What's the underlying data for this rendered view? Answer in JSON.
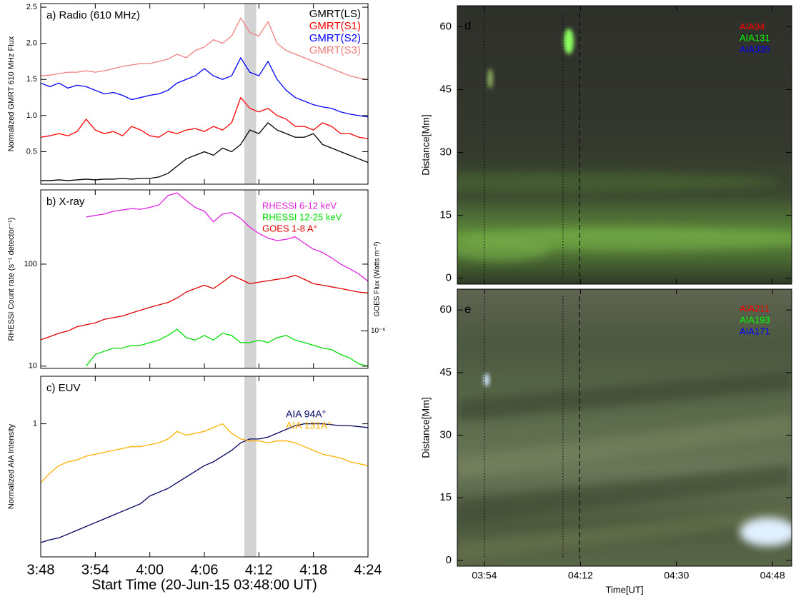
{
  "chart_data": [
    {
      "type": "line",
      "title": "a) Radio (610 MHz)",
      "ylabel": "Normalized GMRT 610 MHz Flux",
      "x": [
        "3:48",
        "3:49",
        "3:50",
        "3:51",
        "3:52",
        "3:53",
        "3:54",
        "3:55",
        "3:56",
        "3:57",
        "3:58",
        "3:59",
        "4:00",
        "4:01",
        "4:02",
        "4:03",
        "4:04",
        "4:05",
        "4:06",
        "4:07",
        "4:08",
        "4:09",
        "4:10",
        "4:11",
        "4:12",
        "4:13",
        "4:14",
        "4:15",
        "4:16",
        "4:17",
        "4:18",
        "4:19",
        "4:20",
        "4:21",
        "4:22",
        "4:23",
        "4:24"
      ],
      "xlim": [
        "3:48",
        "4:24"
      ],
      "xticks": [
        "3:48",
        "3:54",
        "4:00",
        "4:06",
        "4:12",
        "4:18",
        "4:24"
      ],
      "ylim": [
        0.05,
        2.55
      ],
      "yticks": [
        0.5,
        {
          "value": 1,
          "label": "1.0"
        },
        1.5,
        {
          "value": 2,
          "label": "2.0"
        },
        2.5
      ],
      "shaded_span": [
        "4:10:24",
        "4:11:42"
      ],
      "series": [
        {
          "name": "GMRT(LS)",
          "color": "#000000",
          "values": [
            0.1,
            0.1,
            0.11,
            0.1,
            0.11,
            0.12,
            0.11,
            0.12,
            0.12,
            0.13,
            0.12,
            0.13,
            0.13,
            0.15,
            0.2,
            0.3,
            0.4,
            0.45,
            0.5,
            0.45,
            0.55,
            0.5,
            0.6,
            0.8,
            0.75,
            0.9,
            0.8,
            0.75,
            0.7,
            0.7,
            0.75,
            0.6,
            0.55,
            0.5,
            0.45,
            0.4,
            0.35
          ]
        },
        {
          "name": "GMRT(S1)",
          "color": "#ff0000",
          "values": [
            0.7,
            0.72,
            0.75,
            0.72,
            0.78,
            0.95,
            0.8,
            0.75,
            0.78,
            0.72,
            0.85,
            0.8,
            0.72,
            0.7,
            0.78,
            0.75,
            0.8,
            0.82,
            0.78,
            0.85,
            0.8,
            0.9,
            1.25,
            1.1,
            1.05,
            1.1,
            1.0,
            0.95,
            0.85,
            0.85,
            0.8,
            0.9,
            0.85,
            0.75,
            0.75,
            0.7,
            0.68
          ]
        },
        {
          "name": "GMRT(S2)",
          "color": "#0000ff",
          "values": [
            1.45,
            1.4,
            1.45,
            1.38,
            1.42,
            1.4,
            1.35,
            1.3,
            1.32,
            1.28,
            1.22,
            1.25,
            1.28,
            1.3,
            1.35,
            1.45,
            1.5,
            1.55,
            1.65,
            1.55,
            1.5,
            1.55,
            1.8,
            1.6,
            1.55,
            1.75,
            1.5,
            1.35,
            1.25,
            1.2,
            1.15,
            1.12,
            1.1,
            1.05,
            1.02,
            1.0,
            0.98
          ]
        },
        {
          "name": "GMRT(S3)",
          "color": "#f08080",
          "values": [
            1.55,
            1.56,
            1.58,
            1.6,
            1.6,
            1.62,
            1.6,
            1.62,
            1.65,
            1.68,
            1.7,
            1.72,
            1.72,
            1.75,
            1.78,
            1.85,
            1.8,
            1.9,
            1.95,
            2.05,
            2.0,
            2.1,
            2.35,
            2.15,
            2.1,
            2.3,
            2.0,
            1.9,
            1.85,
            1.8,
            1.75,
            1.7,
            1.65,
            1.6,
            1.55,
            1.52,
            1.5
          ]
        }
      ]
    },
    {
      "type": "line",
      "title": "b) X-ray",
      "ylabel": "RHESSI Count rate (s⁻¹ detector⁻¹)",
      "y2label": "GOES Flux (Watts m⁻²)",
      "x": [
        "3:48",
        "3:49",
        "3:50",
        "3:51",
        "3:52",
        "3:53",
        "3:54",
        "3:55",
        "3:56",
        "3:57",
        "3:58",
        "3:59",
        "4:00",
        "4:01",
        "4:02",
        "4:03",
        "4:04",
        "4:05",
        "4:06",
        "4:07",
        "4:08",
        "4:09",
        "4:10",
        "4:11",
        "4:12",
        "4:13",
        "4:14",
        "4:15",
        "4:16",
        "4:17",
        "4:18",
        "4:19",
        "4:20",
        "4:21",
        "4:22",
        "4:23",
        "4:24"
      ],
      "xlim": [
        "3:48",
        "4:24"
      ],
      "xticks": [
        "3:48",
        "3:54",
        "4:00",
        "4:06",
        "4:12",
        "4:18",
        "4:24"
      ],
      "ylog": true,
      "ylim": [
        9.5,
        534
      ],
      "yticks": [
        10,
        100
      ],
      "y2log": true,
      "y2lim": [
        4.3e-07,
        2.4e-05
      ],
      "y2ticks": [
        {
          "value": 1e-06,
          "label": "10⁻⁶"
        }
      ],
      "shaded_span": [
        "4:10:24",
        "4:11:42"
      ],
      "series": [
        {
          "name": "RHESSI 6-12 keV",
          "color": "#e020e0",
          "values": [
            null,
            null,
            null,
            null,
            null,
            290,
            300,
            310,
            330,
            340,
            350,
            345,
            360,
            380,
            470,
            500,
            420,
            360,
            330,
            260,
            310,
            320,
            280,
            230,
            200,
            180,
            170,
            175,
            185,
            160,
            140,
            130,
            115,
            100,
            90,
            80,
            68
          ]
        },
        {
          "name": "RHESSI 12-25 keV",
          "color": "#00e000",
          "values": [
            null,
            null,
            null,
            null,
            null,
            10,
            13,
            14,
            15,
            15,
            16,
            16,
            17,
            18,
            20,
            23,
            19,
            18,
            20,
            18,
            21,
            20,
            17,
            17,
            18,
            17,
            19,
            20,
            18,
            17,
            16,
            15,
            14.5,
            13,
            12,
            10.5,
            10
          ]
        },
        {
          "name": "GOES 1-8 A°",
          "color": "#e00000",
          "axis": "y2",
          "values": [
            8.2e-07,
            8.8e-07,
            9.5e-07,
            1e-06,
            1.1e-06,
            1.15e-06,
            1.2e-06,
            1.3e-06,
            1.35e-06,
            1.4e-06,
            1.5e-06,
            1.6e-06,
            1.7e-06,
            1.8e-06,
            1.9e-06,
            2.1e-06,
            2.4e-06,
            2.6e-06,
            2.8e-06,
            2.6e-06,
            3e-06,
            3.5e-06,
            3.2e-06,
            2.9e-06,
            3e-06,
            3.1e-06,
            3.2e-06,
            3.3e-06,
            3.5e-06,
            3.2e-06,
            2.9e-06,
            2.8e-06,
            2.7e-06,
            2.6e-06,
            2.5e-06,
            2.4e-06,
            2.35e-06
          ]
        }
      ]
    },
    {
      "type": "line",
      "title": "c) EUV",
      "ylabel": "Normalized AIA Intensity",
      "xlabel": "Start Time (20-Jun-15 03:48:00 UT)",
      "x": [
        "3:48",
        "3:49",
        "3:50",
        "3:51",
        "3:52",
        "3:53",
        "3:54",
        "3:55",
        "3:56",
        "3:57",
        "3:58",
        "3:59",
        "4:00",
        "4:01",
        "4:02",
        "4:03",
        "4:04",
        "4:05",
        "4:06",
        "4:07",
        "4:08",
        "4:09",
        "4:10",
        "4:11",
        "4:12",
        "4:13",
        "4:14",
        "4:15",
        "4:16",
        "4:17",
        "4:18",
        "4:19",
        "4:20",
        "4:21",
        "4:22",
        "4:23",
        "4:24"
      ],
      "xlim": [
        "3:48",
        "4:24"
      ],
      "xticks": [
        "3:48",
        "3:54",
        "4:00",
        "4:06",
        "4:12",
        "4:18",
        "4:24"
      ],
      "ylim": [
        0.3,
        1.25
      ],
      "yticks": [
        1
      ],
      "shaded_span": [
        "4:10:24",
        "4:11:42"
      ],
      "series": [
        {
          "name": "AIA 94A°",
          "color": "#000060",
          "values": [
            0.375,
            0.39,
            0.4,
            0.42,
            0.44,
            0.46,
            0.48,
            0.5,
            0.52,
            0.54,
            0.56,
            0.58,
            0.62,
            0.64,
            0.66,
            0.69,
            0.72,
            0.75,
            0.78,
            0.8,
            0.83,
            0.86,
            0.9,
            0.92,
            0.92,
            0.93,
            0.95,
            0.97,
            0.99,
            1.0,
            1.0,
            1.0,
            0.995,
            0.99,
            0.99,
            0.985,
            0.98
          ]
        },
        {
          "name": "AIA 131A°",
          "color": "#ffb000",
          "values": [
            0.69,
            0.74,
            0.78,
            0.8,
            0.81,
            0.83,
            0.84,
            0.85,
            0.86,
            0.87,
            0.88,
            0.88,
            0.89,
            0.9,
            0.92,
            0.96,
            0.94,
            0.95,
            0.96,
            0.98,
            1.0,
            0.95,
            0.92,
            0.91,
            0.91,
            0.9,
            0.91,
            0.91,
            0.9,
            0.88,
            0.86,
            0.84,
            0.83,
            0.82,
            0.8,
            0.79,
            0.78
          ]
        }
      ]
    },
    {
      "type": "image",
      "title": "d",
      "ylabel": "Distance[Mm]",
      "xlim": [
        "03:48:55",
        "04:51:36"
      ],
      "xticks": [
        "03:54",
        "04:12",
        "04:30",
        "04:48"
      ],
      "ylim": [
        -1.4,
        65
      ],
      "yticks": [
        0,
        15,
        30,
        45,
        60
      ],
      "vlines": [
        {
          "x": "03:54",
          "style": "dotted"
        },
        {
          "x": "04:08:43",
          "style": "dotted"
        },
        {
          "x": "04:11:50",
          "style": "dashed"
        }
      ],
      "series": [
        {
          "name": "AIA94",
          "color": "#ff0000"
        },
        {
          "name": "AIA131",
          "color": "#00ff00"
        },
        {
          "name": "AIA335",
          "color": "#0000ff"
        }
      ]
    },
    {
      "type": "image",
      "title": "e",
      "ylabel": "Distance[Mm]",
      "xlabel": "Time[UT]",
      "xlim": [
        "03:48:55",
        "04:51:36"
      ],
      "xticks": [
        "03:54",
        "04:12",
        "04:30",
        "04:48"
      ],
      "ylim": [
        -1.4,
        65
      ],
      "yticks": [
        0,
        15,
        30,
        45,
        60
      ],
      "vlines": [
        {
          "x": "03:54",
          "style": "dotted"
        },
        {
          "x": "04:08:43",
          "style": "dotted"
        },
        {
          "x": "04:11:50",
          "style": "dashed"
        }
      ],
      "series": [
        {
          "name": "AIA211",
          "color": "#ff0000"
        },
        {
          "name": "AIA193",
          "color": "#00ff00"
        },
        {
          "name": "AIA171",
          "color": "#0000ff"
        }
      ]
    }
  ]
}
